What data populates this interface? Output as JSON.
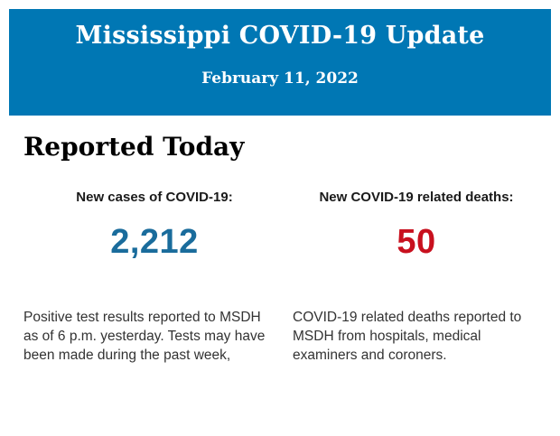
{
  "banner": {
    "title": "Mississippi COVID-19 Update",
    "date": "February 11, 2022",
    "background_color": "#0077b4",
    "text_color": "#ffffff"
  },
  "main": {
    "heading": "Reported Today",
    "stats": [
      {
        "label": "New cases of COVID-19:",
        "value": "2,212",
        "value_color": "#1a6c9c",
        "description": "Positive test results reported to MSDH as of 6 p.m. yesterday. Tests may have been made during the past week,"
      },
      {
        "label": "New COVID-19 related deaths:",
        "value": "50",
        "value_color": "#c8101e",
        "description": "COVID-19 related deaths reported to MSDH from hospitals, medical examiners and coroners."
      }
    ]
  }
}
